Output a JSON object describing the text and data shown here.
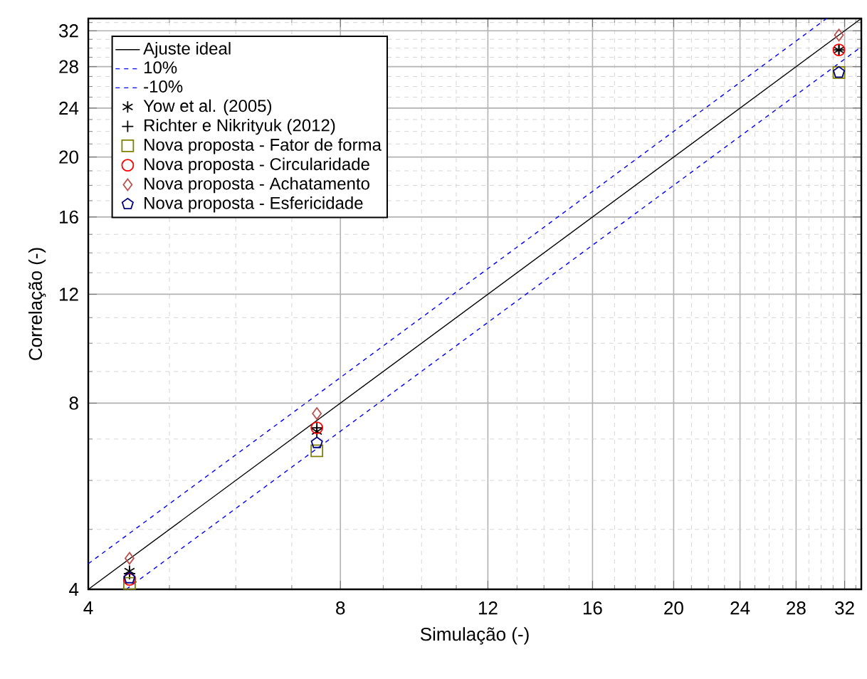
{
  "chart_data": {
    "type": "scatter",
    "xlabel": "Simulação (-)",
    "ylabel": "Correlação (-)",
    "log": "xy",
    "xlim": [
      4,
      33.5
    ],
    "ylim": [
      4,
      33.5
    ],
    "xticks": [
      4,
      8,
      12,
      16,
      20,
      24,
      28,
      32
    ],
    "yticks": [
      4,
      8,
      12,
      16,
      20,
      24,
      28,
      32
    ],
    "grid": true,
    "legend": "top left",
    "series": [
      {
        "name": "Ajuste ideal",
        "type": "line",
        "color": "#000000",
        "line_style": "solid",
        "marker": "none",
        "x": [
          4,
          33.5
        ],
        "values": [
          4,
          33.5
        ]
      },
      {
        "name": "10%",
        "type": "line",
        "color": "#0000ff",
        "line_style": "dashed",
        "marker": "none",
        "x": [
          4,
          30.45
        ],
        "values": [
          4.4,
          33.5
        ]
      },
      {
        "name": "-10%",
        "type": "line",
        "color": "#0000ff",
        "line_style": "dashed",
        "marker": "none",
        "x": [
          4.44,
          33.5
        ],
        "values": [
          4,
          30.15
        ]
      },
      {
        "name": "Yow et al. (2005)",
        "color": "#000000",
        "marker": "cross",
        "x": [
          4.48,
          7.5,
          31.5
        ],
        "values": [
          4.28,
          7.2,
          29.8
        ]
      },
      {
        "name": "Richter e Nikrityuk (2012)",
        "color": "#000000",
        "marker": "plus",
        "x": [
          4.48,
          7.5,
          31.5
        ],
        "values": [
          4.24,
          7.3,
          29.8
        ]
      },
      {
        "name": "Nova proposta - Fator de forma",
        "color": "#808000",
        "marker": "square",
        "x": [
          4.48,
          7.5,
          31.5
        ],
        "values": [
          4.09,
          6.7,
          27.4
        ]
      },
      {
        "name": "Nova proposta - Circularidade",
        "color": "#ff0000",
        "marker": "circle",
        "x": [
          4.48,
          7.5,
          31.5
        ],
        "values": [
          4.15,
          7.3,
          29.8
        ]
      },
      {
        "name": "Nova proposta - Achatamento",
        "color": "#c0504d",
        "marker": "diamond",
        "x": [
          4.48,
          7.5,
          31.5
        ],
        "values": [
          4.49,
          7.7,
          31.5
        ]
      },
      {
        "name": "Nova proposta - Esfericidade",
        "color": "#000080",
        "x": [
          4.48,
          7.5,
          31.5
        ],
        "values": [
          4.17,
          6.9,
          27.4
        ]
      }
    ]
  }
}
